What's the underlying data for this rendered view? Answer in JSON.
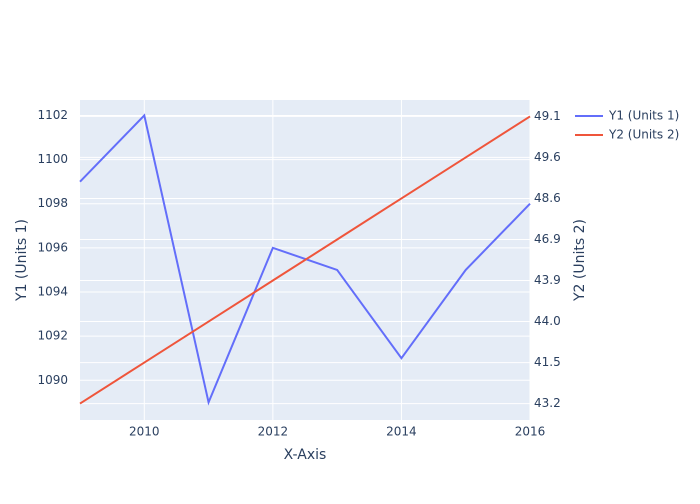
{
  "chart_data": {
    "type": "line",
    "x_label": "X-Axis",
    "y_label": "Y1 (Units 1)",
    "y2_label": "Y2 (Units 2)",
    "x": [
      2009,
      2010,
      2011,
      2012,
      2013,
      2014,
      2015,
      2016
    ],
    "series": [
      {
        "name": "Y1 (Units 1)",
        "color": "#636efa",
        "values": [
          1099,
          1102,
          1089,
          1096,
          1095,
          1091,
          1095,
          1098
        ]
      },
      {
        "name": "Y2 (Units 2)",
        "color": "#ef553b",
        "axis": "y2",
        "values": [
          43.2,
          41.5,
          44.0,
          43.9,
          46.9,
          48.6,
          49.6,
          49.1
        ]
      }
    ],
    "xlim": [
      2009,
      2016
    ],
    "xticks": [
      2010,
      2012,
      2014,
      2016
    ],
    "ylim": [
      1088.2,
      1102.7
    ],
    "yticks": [
      1090,
      1092,
      1094,
      1096,
      1098,
      1100,
      1102
    ],
    "y2type": "category",
    "y2lim": [
      -0.4,
      7.4
    ],
    "y2ticks": [
      43.2,
      41.5,
      {
        "value": 44.0,
        "label": "44.0"
      },
      43.9,
      46.9,
      48.6,
      49.6,
      49.1
    ],
    "grid": true,
    "legend": "top-right"
  }
}
